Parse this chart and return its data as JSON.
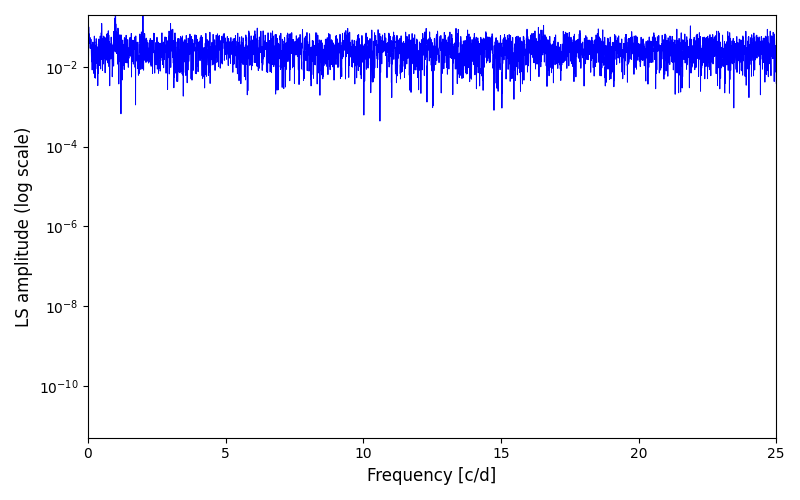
{
  "xlabel": "Frequency [c/d]",
  "ylabel": "LS amplitude (log scale)",
  "xlim": [
    0,
    25
  ],
  "ylim": [
    5e-12,
    0.2
  ],
  "line_color": "#0000ff",
  "line_width": 0.7,
  "background_color": "#ffffff",
  "fig_width": 8.0,
  "fig_height": 5.0,
  "dpi": 100,
  "n_freq": 6000,
  "seed": 12345,
  "freq_max": 25.0,
  "n_obs": 800,
  "timespan": 100.0,
  "signal_amp": 0.15,
  "signal_freq": 1.0,
  "noise_std": 0.005
}
